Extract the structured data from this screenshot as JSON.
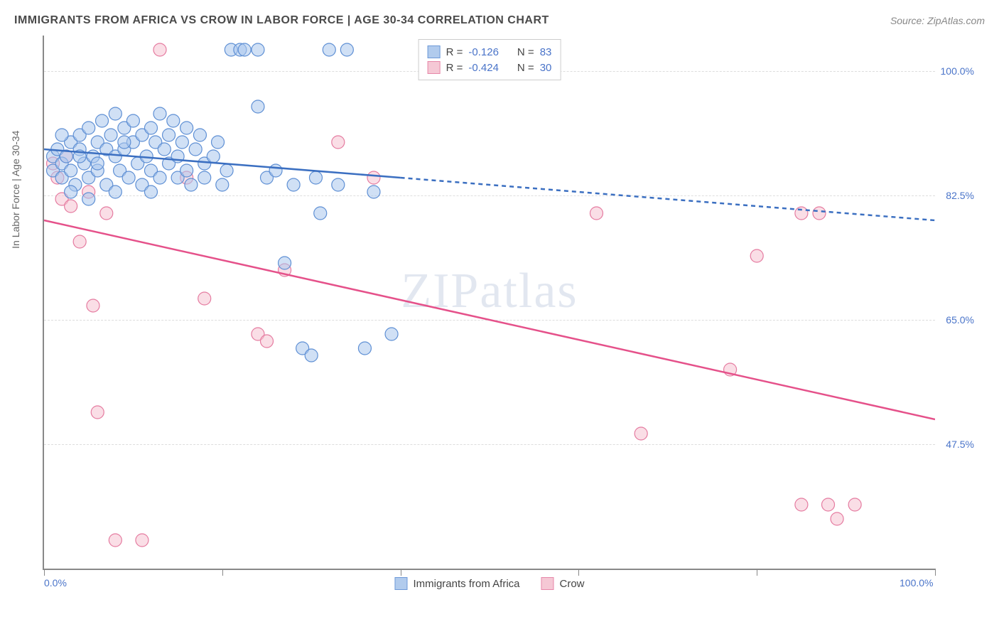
{
  "title": "IMMIGRANTS FROM AFRICA VS CROW IN LABOR FORCE | AGE 30-34 CORRELATION CHART",
  "source": "Source: ZipAtlas.com",
  "watermark": "ZIPatlas",
  "chart": {
    "type": "scatter",
    "xlim": [
      0,
      100
    ],
    "ylim": [
      30,
      105
    ],
    "y_axis_title": "In Labor Force | Age 30-34",
    "y_ticks": [
      47.5,
      65.0,
      82.5,
      100.0
    ],
    "y_tick_labels": [
      "47.5%",
      "65.0%",
      "82.5%",
      "100.0%"
    ],
    "x_ticks": [
      0,
      20,
      40,
      60,
      80,
      100
    ],
    "x_tick_labels_shown": {
      "0": "0.0%",
      "100": "100.0%"
    },
    "background_color": "#ffffff",
    "grid_color": "#dddddd",
    "axis_color": "#888888",
    "tick_label_color": "#4a74c9",
    "series": {
      "a": {
        "name": "Immigrants from Africa",
        "fill": "#a9c6ec",
        "stroke": "#5e8fd4",
        "fill_opacity": 0.55,
        "marker_radius": 9,
        "R": "-0.126",
        "N": "83",
        "trend": {
          "x1": 0,
          "y1": 89,
          "x2": 40,
          "y2": 85,
          "x2_ext": 100,
          "y2_ext": 79,
          "stroke": "#3b6fc1",
          "width": 2.5,
          "dash": "6,5"
        },
        "points": [
          [
            1,
            88
          ],
          [
            1,
            86
          ],
          [
            1.5,
            89
          ],
          [
            2,
            87
          ],
          [
            2,
            85
          ],
          [
            2.5,
            88
          ],
          [
            3,
            90
          ],
          [
            3,
            86
          ],
          [
            3.5,
            84
          ],
          [
            4,
            89
          ],
          [
            4,
            91
          ],
          [
            4.5,
            87
          ],
          [
            5,
            92
          ],
          [
            5,
            85
          ],
          [
            5.5,
            88
          ],
          [
            6,
            90
          ],
          [
            6,
            86
          ],
          [
            6.5,
            93
          ],
          [
            7,
            89
          ],
          [
            7,
            84
          ],
          [
            7.5,
            91
          ],
          [
            8,
            88
          ],
          [
            8,
            94
          ],
          [
            8.5,
            86
          ],
          [
            9,
            92
          ],
          [
            9,
            89
          ],
          [
            9.5,
            85
          ],
          [
            10,
            90
          ],
          [
            10,
            93
          ],
          [
            10.5,
            87
          ],
          [
            11,
            91
          ],
          [
            11,
            84
          ],
          [
            11.5,
            88
          ],
          [
            12,
            92
          ],
          [
            12,
            86
          ],
          [
            12.5,
            90
          ],
          [
            13,
            94
          ],
          [
            13,
            85
          ],
          [
            13.5,
            89
          ],
          [
            14,
            91
          ],
          [
            14,
            87
          ],
          [
            14.5,
            93
          ],
          [
            15,
            88
          ],
          [
            15,
            85
          ],
          [
            15.5,
            90
          ],
          [
            16,
            92
          ],
          [
            16,
            86
          ],
          [
            16.5,
            84
          ],
          [
            17,
            89
          ],
          [
            17.5,
            91
          ],
          [
            18,
            87
          ],
          [
            18,
            85
          ],
          [
            19,
            88
          ],
          [
            19.5,
            90
          ],
          [
            20,
            84
          ],
          [
            20.5,
            86
          ],
          [
            21,
            103
          ],
          [
            22,
            103
          ],
          [
            22.5,
            103
          ],
          [
            24,
            103
          ],
          [
            24,
            95
          ],
          [
            25,
            85
          ],
          [
            26,
            86
          ],
          [
            27,
            73
          ],
          [
            28,
            84
          ],
          [
            29,
            61
          ],
          [
            30,
            60
          ],
          [
            30.5,
            85
          ],
          [
            31,
            80
          ],
          [
            32,
            103
          ],
          [
            33,
            84
          ],
          [
            34,
            103
          ],
          [
            36,
            61
          ],
          [
            37,
            83
          ],
          [
            39,
            63
          ],
          [
            3,
            83
          ],
          [
            5,
            82
          ],
          [
            8,
            83
          ],
          [
            12,
            83
          ],
          [
            2,
            91
          ],
          [
            6,
            87
          ],
          [
            9,
            90
          ],
          [
            4,
            88
          ]
        ]
      },
      "b": {
        "name": "Crow",
        "fill": "#f5c3d1",
        "stroke": "#e57ba0",
        "fill_opacity": 0.55,
        "marker_radius": 9,
        "R": "-0.424",
        "N": "30",
        "trend": {
          "x1": 0,
          "y1": 79,
          "x2": 100,
          "y2": 51,
          "stroke": "#e5518a",
          "width": 2.5
        },
        "points": [
          [
            1,
            87
          ],
          [
            1.5,
            85
          ],
          [
            2,
            82
          ],
          [
            2.5,
            88
          ],
          [
            3,
            81
          ],
          [
            4,
            76
          ],
          [
            5,
            83
          ],
          [
            5.5,
            67
          ],
          [
            6,
            52
          ],
          [
            7,
            80
          ],
          [
            8,
            34
          ],
          [
            11,
            34
          ],
          [
            13,
            103
          ],
          [
            16,
            85
          ],
          [
            18,
            68
          ],
          [
            24,
            63
          ],
          [
            25,
            62
          ],
          [
            27,
            72
          ],
          [
            33,
            90
          ],
          [
            37,
            85
          ],
          [
            62,
            80
          ],
          [
            67,
            49
          ],
          [
            77,
            58
          ],
          [
            80,
            74
          ],
          [
            85,
            80
          ],
          [
            87,
            80
          ],
          [
            85,
            39
          ],
          [
            88,
            39
          ],
          [
            89,
            37
          ],
          [
            91,
            39
          ]
        ]
      }
    }
  },
  "legend_top": {
    "r_label": "R =",
    "n_label": "N ="
  }
}
